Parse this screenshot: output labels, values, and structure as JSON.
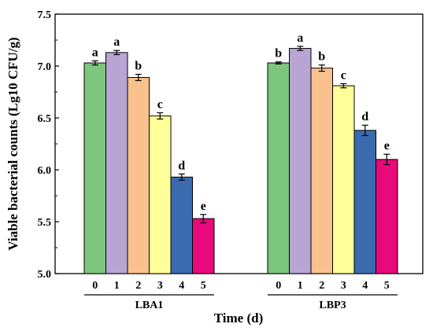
{
  "chart_data": {
    "type": "bar",
    "xlabel": "Time (d)",
    "ylabel": "Viable bacterial counts (Lg10 CFU/g)",
    "ylim": [
      5.0,
      7.5
    ],
    "yticks": [
      "5.0",
      "5.5",
      "6.0",
      "6.5",
      "7.0",
      "7.5"
    ],
    "time_labels": [
      "0",
      "1",
      "2",
      "3",
      "4",
      "5"
    ],
    "colors": [
      "#7dc67d",
      "#b8a5d3",
      "#f8c18e",
      "#ffff99",
      "#3a6bb0",
      "#e8097a"
    ],
    "groups": [
      {
        "name": "LBA1",
        "values": [
          7.03,
          7.13,
          6.89,
          6.52,
          5.93,
          5.53
        ],
        "errors": [
          0.02,
          0.02,
          0.03,
          0.03,
          0.03,
          0.04
        ],
        "letters": [
          "a",
          "a",
          "b",
          "c",
          "d",
          "e"
        ]
      },
      {
        "name": "LBP3",
        "values": [
          7.03,
          7.17,
          6.98,
          6.81,
          6.38,
          6.1
        ],
        "errors": [
          0.01,
          0.02,
          0.03,
          0.02,
          0.05,
          0.05
        ],
        "letters": [
          "b",
          "a",
          "b",
          "c",
          "d",
          "e"
        ]
      }
    ]
  }
}
